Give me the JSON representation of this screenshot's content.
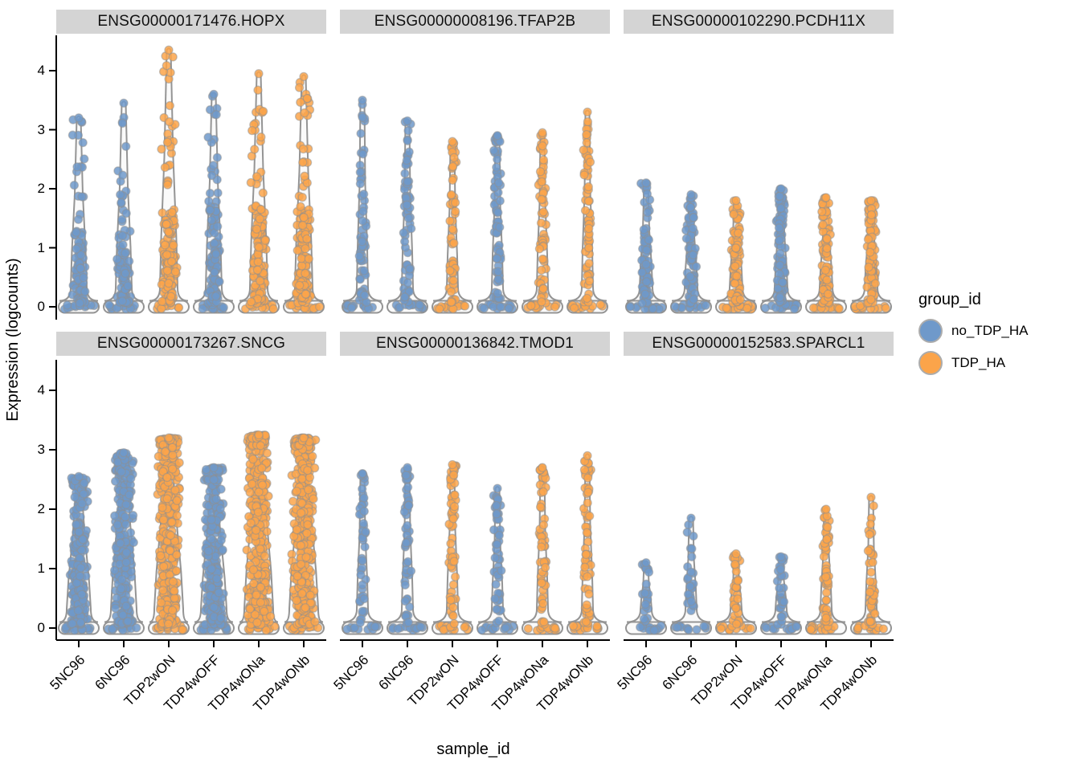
{
  "figure": {
    "description": "Faceted violin + jitter plot of single-cell gene expression by sample",
    "background": "#FFFFFF"
  },
  "axes": {
    "ylabel": "Expression (logcounts)",
    "xlabel": "sample_id",
    "yticks": [
      0,
      1,
      2,
      3,
      4
    ],
    "ylim": [
      0,
      4.4
    ]
  },
  "legend": {
    "title": "group_id",
    "entries": [
      {
        "label": "no_TDP_HA",
        "color": "#6F99CA"
      },
      {
        "label": "TDP_HA",
        "color": "#FBA44A"
      }
    ]
  },
  "style": {
    "strip_bg": "#D4D4D4",
    "violin_stroke": "#949494",
    "violin_fill": "#FAFAFA",
    "point_stroke": "#8F8F8F",
    "axis_color": "#000000"
  },
  "chart_data": {
    "type": "violin",
    "subtype": "faceted violin with jittered points",
    "categories": [
      "5NC96",
      "6NC96",
      "TDP2wON",
      "TDP4wOFF",
      "TDP4wONa",
      "TDP4wONb"
    ],
    "category_groups": [
      "no_TDP_HA",
      "no_TDP_HA",
      "TDP_HA",
      "no_TDP_HA",
      "TDP_HA",
      "TDP_HA"
    ],
    "xlabel": "sample_id",
    "ylabel": "Expression (logcounts)",
    "ylim": [
      0,
      4.4
    ],
    "grid": false,
    "legend_position": "right",
    "facets": [
      {
        "gene": "ENSG00000171476.HOPX",
        "samples": [
          {
            "sample": "5NC96",
            "group": "no_TDP_HA",
            "max": 3.2,
            "dense_upper": 1.35,
            "n_nonzero": 90,
            "col_halfwidth": 7
          },
          {
            "sample": "6NC96",
            "group": "no_TDP_HA",
            "max": 3.45,
            "dense_upper": 1.3,
            "n_nonzero": 95,
            "col_halfwidth": 7
          },
          {
            "sample": "TDP2wON",
            "group": "TDP_HA",
            "max": 4.35,
            "dense_upper": 1.6,
            "n_nonzero": 150,
            "col_halfwidth": 8
          },
          {
            "sample": "TDP4wOFF",
            "group": "no_TDP_HA",
            "max": 3.6,
            "dense_upper": 1.8,
            "n_nonzero": 110,
            "col_halfwidth": 7
          },
          {
            "sample": "TDP4wONa",
            "group": "TDP_HA",
            "max": 3.95,
            "dense_upper": 1.7,
            "n_nonzero": 140,
            "col_halfwidth": 8
          },
          {
            "sample": "TDP4wONb",
            "group": "TDP_HA",
            "max": 3.9,
            "dense_upper": 1.7,
            "n_nonzero": 140,
            "col_halfwidth": 8
          }
        ]
      },
      {
        "gene": "ENSG00000008196.TFAP2B",
        "samples": [
          {
            "sample": "5NC96",
            "group": "no_TDP_HA",
            "max": 3.5,
            "dense_upper": 2.4,
            "n_nonzero": 60,
            "col_halfwidth": 4
          },
          {
            "sample": "6NC96",
            "group": "no_TDP_HA",
            "max": 3.15,
            "dense_upper": 2.5,
            "n_nonzero": 65,
            "col_halfwidth": 4
          },
          {
            "sample": "TDP2wON",
            "group": "TDP_HA",
            "max": 2.8,
            "dense_upper": 2.3,
            "n_nonzero": 60,
            "col_halfwidth": 4
          },
          {
            "sample": "TDP4wOFF",
            "group": "no_TDP_HA",
            "max": 2.9,
            "dense_upper": 2.75,
            "n_nonzero": 70,
            "col_halfwidth": 4
          },
          {
            "sample": "TDP4wONa",
            "group": "TDP_HA",
            "max": 2.95,
            "dense_upper": 2.6,
            "n_nonzero": 60,
            "col_halfwidth": 4
          },
          {
            "sample": "TDP4wONb",
            "group": "TDP_HA",
            "max": 3.3,
            "dense_upper": 2.6,
            "n_nonzero": 65,
            "col_halfwidth": 4
          }
        ]
      },
      {
        "gene": "ENSG00000102290.PCDH11X",
        "samples": [
          {
            "sample": "5NC96",
            "group": "no_TDP_HA",
            "max": 2.1,
            "dense_upper": 1.55,
            "n_nonzero": 75,
            "col_halfwidth": 5
          },
          {
            "sample": "6NC96",
            "group": "no_TDP_HA",
            "max": 1.9,
            "dense_upper": 1.5,
            "n_nonzero": 80,
            "col_halfwidth": 5
          },
          {
            "sample": "TDP2wON",
            "group": "TDP_HA",
            "max": 1.8,
            "dense_upper": 1.5,
            "n_nonzero": 80,
            "col_halfwidth": 5
          },
          {
            "sample": "TDP4wOFF",
            "group": "no_TDP_HA",
            "max": 2.0,
            "dense_upper": 1.6,
            "n_nonzero": 90,
            "col_halfwidth": 5
          },
          {
            "sample": "TDP4wONa",
            "group": "TDP_HA",
            "max": 1.85,
            "dense_upper": 1.55,
            "n_nonzero": 85,
            "col_halfwidth": 5
          },
          {
            "sample": "TDP4wONb",
            "group": "TDP_HA",
            "max": 1.8,
            "dense_upper": 1.55,
            "n_nonzero": 85,
            "col_halfwidth": 5
          }
        ]
      },
      {
        "gene": "ENSG00000173267.SNCG",
        "samples": [
          {
            "sample": "5NC96",
            "group": "no_TDP_HA",
            "max": 2.55,
            "dense_upper": 2.35,
            "n_nonzero": 240,
            "col_halfwidth": 9
          },
          {
            "sample": "6NC96",
            "group": "no_TDP_HA",
            "max": 2.95,
            "dense_upper": 2.6,
            "n_nonzero": 260,
            "col_halfwidth": 10
          },
          {
            "sample": "TDP2wON",
            "group": "TDP_HA",
            "max": 3.2,
            "dense_upper": 3.05,
            "n_nonzero": 380,
            "col_halfwidth": 12
          },
          {
            "sample": "TDP4wOFF",
            "group": "no_TDP_HA",
            "max": 2.7,
            "dense_upper": 2.6,
            "n_nonzero": 280,
            "col_halfwidth": 10
          },
          {
            "sample": "TDP4wONa",
            "group": "TDP_HA",
            "max": 3.25,
            "dense_upper": 3.05,
            "n_nonzero": 400,
            "col_halfwidth": 12
          },
          {
            "sample": "TDP4wONb",
            "group": "TDP_HA",
            "max": 3.2,
            "dense_upper": 3.05,
            "n_nonzero": 390,
            "col_halfwidth": 12
          }
        ]
      },
      {
        "gene": "ENSG00000136842.TMOD1",
        "samples": [
          {
            "sample": "5NC96",
            "group": "no_TDP_HA",
            "max": 2.6,
            "dense_upper": 2.3,
            "n_nonzero": 45,
            "col_halfwidth": 4
          },
          {
            "sample": "6NC96",
            "group": "no_TDP_HA",
            "max": 2.7,
            "dense_upper": 2.4,
            "n_nonzero": 50,
            "col_halfwidth": 4
          },
          {
            "sample": "TDP2wON",
            "group": "TDP_HA",
            "max": 2.75,
            "dense_upper": 2.5,
            "n_nonzero": 55,
            "col_halfwidth": 4
          },
          {
            "sample": "TDP4wOFF",
            "group": "no_TDP_HA",
            "max": 2.35,
            "dense_upper": 2.1,
            "n_nonzero": 50,
            "col_halfwidth": 4
          },
          {
            "sample": "TDP4wONa",
            "group": "TDP_HA",
            "max": 2.7,
            "dense_upper": 2.5,
            "n_nonzero": 60,
            "col_halfwidth": 4
          },
          {
            "sample": "TDP4wONb",
            "group": "TDP_HA",
            "max": 2.9,
            "dense_upper": 2.5,
            "n_nonzero": 60,
            "col_halfwidth": 4
          }
        ]
      },
      {
        "gene": "ENSG00000152583.SPARCL1",
        "samples": [
          {
            "sample": "5NC96",
            "group": "no_TDP_HA",
            "max": 1.1,
            "dense_upper": 0.95,
            "n_nonzero": 22,
            "col_halfwidth": 4
          },
          {
            "sample": "6NC96",
            "group": "no_TDP_HA",
            "max": 1.85,
            "dense_upper": 1.1,
            "n_nonzero": 25,
            "col_halfwidth": 4
          },
          {
            "sample": "TDP2wON",
            "group": "TDP_HA",
            "max": 1.25,
            "dense_upper": 1.1,
            "n_nonzero": 35,
            "col_halfwidth": 4
          },
          {
            "sample": "TDP4wOFF",
            "group": "no_TDP_HA",
            "max": 1.2,
            "dense_upper": 1.0,
            "n_nonzero": 30,
            "col_halfwidth": 4
          },
          {
            "sample": "TDP4wONa",
            "group": "TDP_HA",
            "max": 2.0,
            "dense_upper": 1.6,
            "n_nonzero": 45,
            "col_halfwidth": 4
          },
          {
            "sample": "TDP4wONb",
            "group": "TDP_HA",
            "max": 2.2,
            "dense_upper": 1.7,
            "n_nonzero": 45,
            "col_halfwidth": 4
          }
        ]
      }
    ]
  }
}
